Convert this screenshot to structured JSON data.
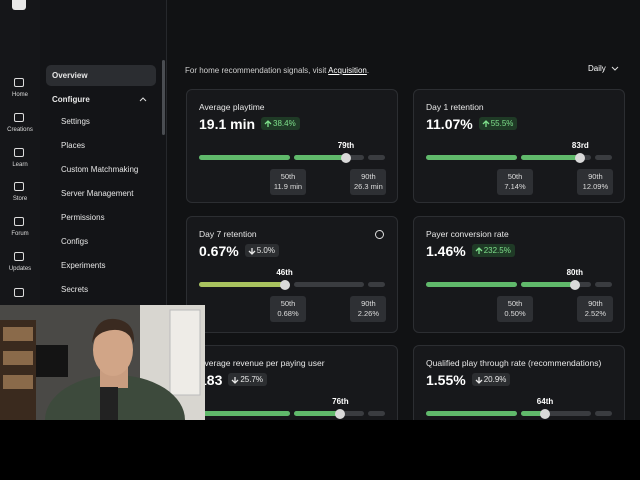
{
  "sidebar": [
    "Home",
    "Creations",
    "Learn",
    "Store",
    "Forum",
    "Updates"
  ],
  "nav": {
    "overview": "Overview",
    "section": "Configure",
    "items": [
      "Settings",
      "Places",
      "Custom Matchmaking",
      "Server Management",
      "Permissions",
      "Configs",
      "Experiments",
      "Secrets"
    ]
  },
  "header": {
    "note": "For home recommendation signals, visit",
    "link": "Acquisition",
    "end": ".",
    "period": "Daily"
  },
  "cards": [
    {
      "title": "Average playtime",
      "value": "19.1 min",
      "change": "38.4%",
      "trend": "up",
      "percentile": {
        "value": 79,
        "label": "79th"
      },
      "p50": {
        "label": "50th",
        "value": "11.9 min"
      },
      "p90": {
        "label": "90th",
        "value": "26.3 min"
      }
    },
    {
      "title": "Day 1 retention",
      "value": "11.07%",
      "change": "55.5%",
      "trend": "up",
      "percentile": {
        "value": 83,
        "label": "83rd"
      },
      "p50": {
        "label": "50th",
        "value": "7.14%"
      },
      "p90": {
        "label": "90th",
        "value": "12.09%"
      }
    },
    {
      "title": "Day 7 retention",
      "value": "0.67%",
      "change": "5.0%",
      "trend": "down",
      "percentile": {
        "value": 46,
        "label": "46th"
      },
      "p50": {
        "label": "50th",
        "value": "0.68%"
      },
      "p90": {
        "label": "90th",
        "value": "2.26%"
      }
    },
    {
      "title": "Payer conversion rate",
      "value": "1.46%",
      "change": "232.5%",
      "trend": "up",
      "percentile": {
        "value": 80,
        "label": "80th"
      },
      "p50": {
        "label": "50th",
        "value": "0.50%"
      },
      "p90": {
        "label": "90th",
        "value": "2.52%"
      }
    },
    {
      "title": "Average revenue per paying user",
      "value": "183",
      "change": "25.7%",
      "trend": "down",
      "percentile": {
        "value": 76,
        "label": "76th"
      }
    },
    {
      "title": "Qualified play through rate (recommendations)",
      "value": "1.55%",
      "change": "20.9%",
      "trend": "down",
      "percentile": {
        "value": 64,
        "label": "64th"
      }
    }
  ]
}
